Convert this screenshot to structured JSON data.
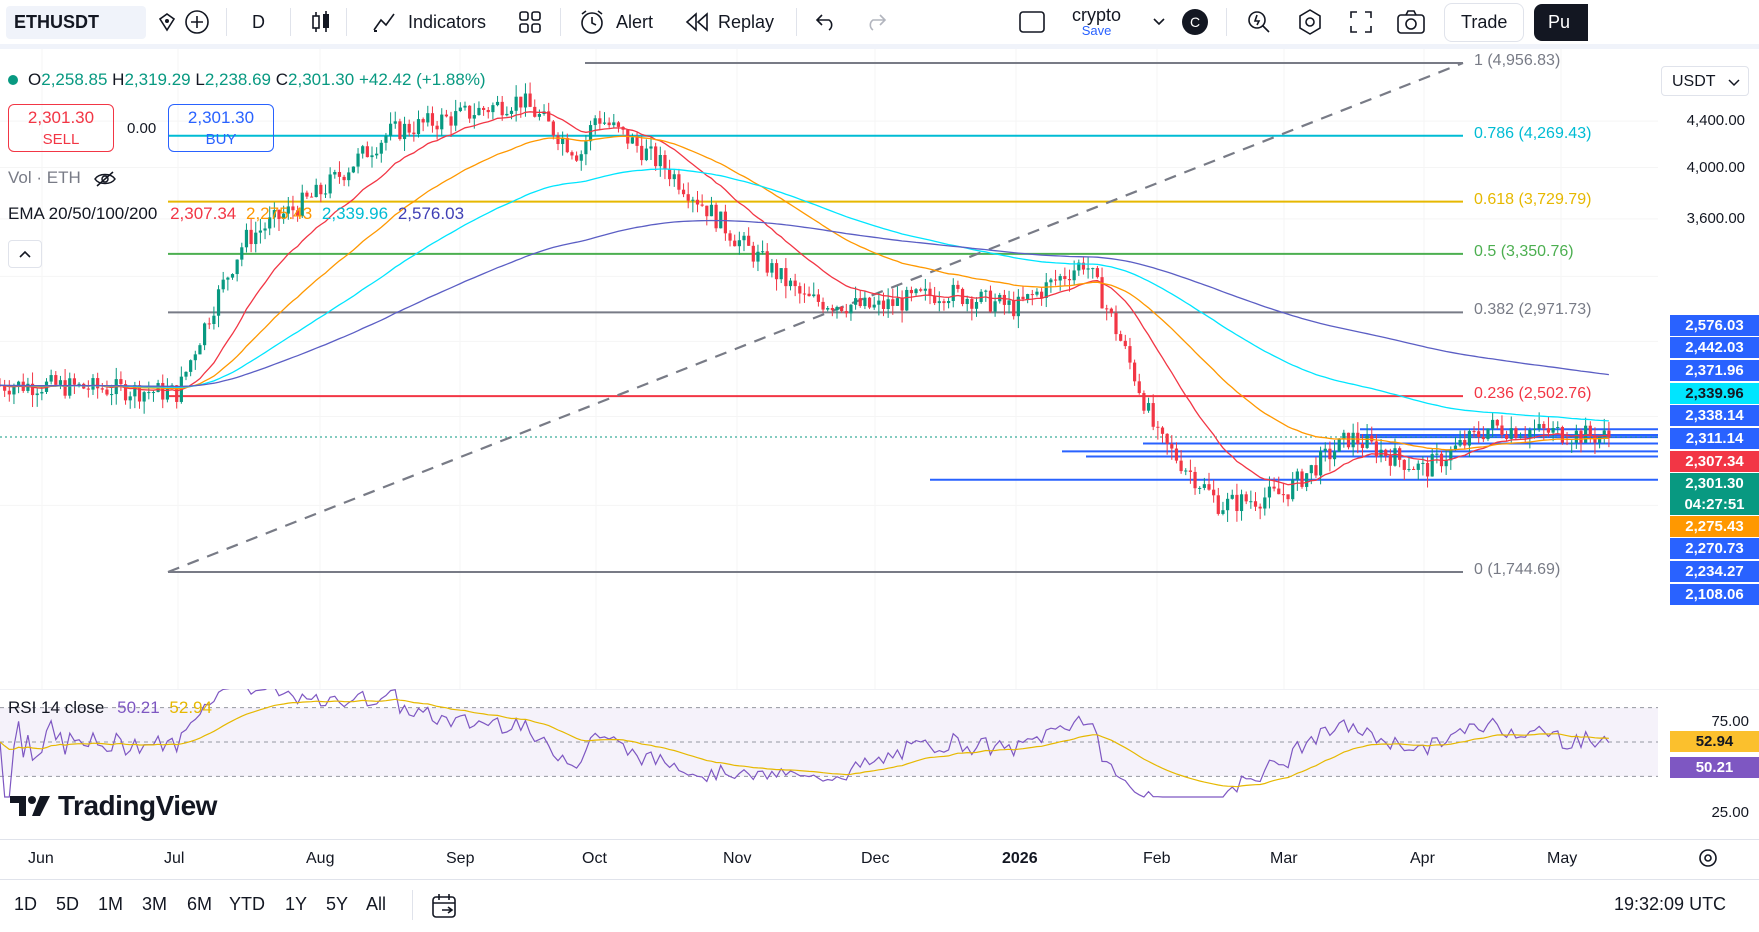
{
  "topbar": {
    "symbol": "ETHUSDT",
    "interval": "D",
    "indicators_label": "Indicators",
    "alert_label": "Alert",
    "replay_label": "Replay",
    "layout_name": "crypto",
    "layout_status": "Save",
    "avatar_letter": "C",
    "trade_label": "Trade",
    "publish_label": "Pu"
  },
  "ohlc": {
    "open_label": "O",
    "open": "2,258.85",
    "high_label": "H",
    "high": "2,319.29",
    "low_label": "L",
    "low": "2,238.69",
    "close_label": "C",
    "close": "2,301.30",
    "change": "+42.42 (+1.88%)"
  },
  "trade_widget": {
    "sell_price": "2,301.30",
    "sell_label": "SELL",
    "spread": "0.00",
    "buy_price": "2,301.30",
    "buy_label": "BUY"
  },
  "vol_legend": "Vol · ETH",
  "ema_legend": {
    "name": "EMA 20/50/100/200",
    "v20": "2,307.34",
    "v50": "2,275.43",
    "v100": "2,339.96",
    "v200": "2,576.03"
  },
  "currency": "USDT",
  "fib_levels": [
    {
      "label": "1 (4,956.83)",
      "color": "#787b86"
    },
    {
      "label": "0.786 (4,269.43)",
      "color": "#00bcd4"
    },
    {
      "label": "0.618 (3,729.79)",
      "color": "#e6b800"
    },
    {
      "label": "0.5 (3,350.76)",
      "color": "#4caf50"
    },
    {
      "label": "0.382 (2,971.73)",
      "color": "#787b86"
    },
    {
      "label": "0.236 (2,502.76)",
      "color": "#f23645"
    },
    {
      "label": "0 (1,744.69)",
      "color": "#787b86"
    }
  ],
  "price_axis": [
    "4,400.00",
    "4,000.00",
    "3,600.00"
  ],
  "price_tags": [
    {
      "value": "2,576.03",
      "color": "#2962ff"
    },
    {
      "value": "2,442.03",
      "color": "#2962ff"
    },
    {
      "value": "2,371.96",
      "color": "#2962ff"
    },
    {
      "value": "2,339.96",
      "color": "#00e5ff"
    },
    {
      "value": "2,338.14",
      "color": "#2962ff"
    },
    {
      "value": "2,311.14",
      "color": "#2962ff"
    },
    {
      "value": "2,307.34",
      "color": "#f23645"
    },
    {
      "value": "2,301.30",
      "color": "#089981"
    },
    {
      "value": "04:27:51",
      "color": "#089981"
    },
    {
      "value": "2,275.43",
      "color": "#ff9800"
    },
    {
      "value": "2,270.73",
      "color": "#2962ff"
    },
    {
      "value": "2,234.27",
      "color": "#2962ff"
    },
    {
      "value": "2,108.06",
      "color": "#2962ff"
    }
  ],
  "rsi": {
    "legend": "RSI 14 close",
    "value": "50.21",
    "ma": "52.94",
    "axis_high": "75.00",
    "axis_low": "25.00"
  },
  "watermark": "TradingView",
  "time_axis": [
    "Jun",
    "Jul",
    "Aug",
    "Sep",
    "Oct",
    "Nov",
    "Dec",
    "2026",
    "Feb",
    "Mar",
    "Apr",
    "May"
  ],
  "ranges": [
    "1D",
    "5D",
    "1M",
    "3M",
    "6M",
    "YTD",
    "1Y",
    "5Y",
    "All"
  ],
  "clock": "19:32:09 UTC",
  "colors": {
    "up": "#089981",
    "down": "#f23645",
    "ema20": "#f23645",
    "ema50": "#ff9800",
    "ema100": "#00e5ff",
    "ema200": "#5b5ec4",
    "rsi": "#7e57c2",
    "rsi_ma": "#e6b800"
  },
  "chart_data": {
    "type": "candlestick",
    "symbol": "ETHUSDT",
    "interval": "1D",
    "close_path": [
      [
        "Jun",
        2560
      ],
      [
        "Jul",
        2520
      ],
      [
        "Jul-mid",
        3450
      ],
      [
        "Aug",
        3800
      ],
      [
        "Aug-mid",
        4300
      ],
      [
        "Sep",
        4450
      ],
      [
        "Sep-mid",
        4600
      ],
      [
        "Sep-end",
        4100
      ],
      [
        "Oct",
        4450
      ],
      [
        "Oct-mid",
        4000
      ],
      [
        "Nov",
        3450
      ],
      [
        "Nov-mid",
        3050
      ],
      [
        "Dec",
        3000
      ],
      [
        "Dec-mid",
        3100
      ],
      [
        "2026",
        3000
      ],
      [
        "Jan-mid",
        3300
      ],
      [
        "Feb",
        2300
      ],
      [
        "Feb-mid",
        2000
      ],
      [
        "Mar",
        2050
      ],
      [
        "Mar-mid",
        2300
      ],
      [
        "Apr",
        2150
      ],
      [
        "Apr-mid",
        2350
      ],
      [
        "May",
        2320
      ],
      [
        "May-mid",
        2301.3
      ]
    ],
    "fibonacci": {
      "1": 4956.83,
      "0.786": 4269.43,
      "0.618": 3729.79,
      "0.5": 3350.76,
      "0.382": 2971.73,
      "0.236": 2502.76,
      "0": 1744.69
    },
    "ema": {
      "20": 2307.34,
      "50": 2275.43,
      "100": 2339.96,
      "200": 2576.03
    }
  }
}
